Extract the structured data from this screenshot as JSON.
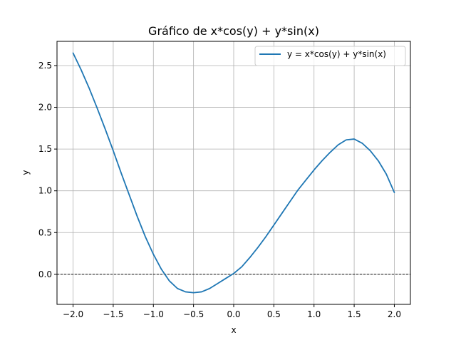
{
  "chart_data": {
    "type": "line",
    "title": "Gráfico de x*cos(y) + y*sin(x)",
    "xlabel": "x",
    "ylabel": "y",
    "xlim": [
      -2.2,
      2.2
    ],
    "ylim": [
      -0.36,
      2.79
    ],
    "x_ticks": [
      -2.0,
      -1.5,
      -1.0,
      -0.5,
      0.0,
      0.5,
      1.0,
      1.5,
      2.0
    ],
    "x_tick_labels": [
      "−2.0",
      "−1.5",
      "−1.0",
      "−0.5",
      "0.0",
      "0.5",
      "1.0",
      "1.5",
      "2.0"
    ],
    "y_ticks": [
      0.0,
      0.5,
      1.0,
      1.5,
      2.0,
      2.5
    ],
    "y_tick_labels": [
      "0.0",
      "0.5",
      "1.0",
      "1.5",
      "2.0",
      "2.5"
    ],
    "grid": true,
    "legend_position": "upper right",
    "reference_line": {
      "y": 0.0,
      "style": "dashed",
      "color": "#000000"
    },
    "series": [
      {
        "name": "y = x*cos(y) + y*sin(x)",
        "color": "#1f77b4",
        "x": [
          -2.0,
          -1.9,
          -1.8,
          -1.7,
          -1.6,
          -1.5,
          -1.4,
          -1.3,
          -1.2,
          -1.1,
          -1.0,
          -0.9,
          -0.8,
          -0.7,
          -0.6,
          -0.5,
          -0.4,
          -0.3,
          -0.2,
          -0.1,
          0.0,
          0.1,
          0.2,
          0.3,
          0.4,
          0.5,
          0.6,
          0.7,
          0.8,
          0.9,
          1.0,
          1.1,
          1.2,
          1.3,
          1.4,
          1.5,
          1.6,
          1.7,
          1.8,
          1.9,
          2.0
        ],
        "y": [
          2.65,
          2.45,
          2.23,
          1.99,
          1.74,
          1.48,
          1.21,
          0.95,
          0.69,
          0.45,
          0.24,
          0.06,
          -0.08,
          -0.17,
          -0.21,
          -0.22,
          -0.21,
          -0.17,
          -0.11,
          -0.05,
          0.01,
          0.09,
          0.2,
          0.32,
          0.45,
          0.59,
          0.73,
          0.87,
          1.01,
          1.13,
          1.25,
          1.36,
          1.46,
          1.55,
          1.61,
          1.62,
          1.57,
          1.48,
          1.36,
          1.2,
          0.98
        ]
      }
    ]
  }
}
